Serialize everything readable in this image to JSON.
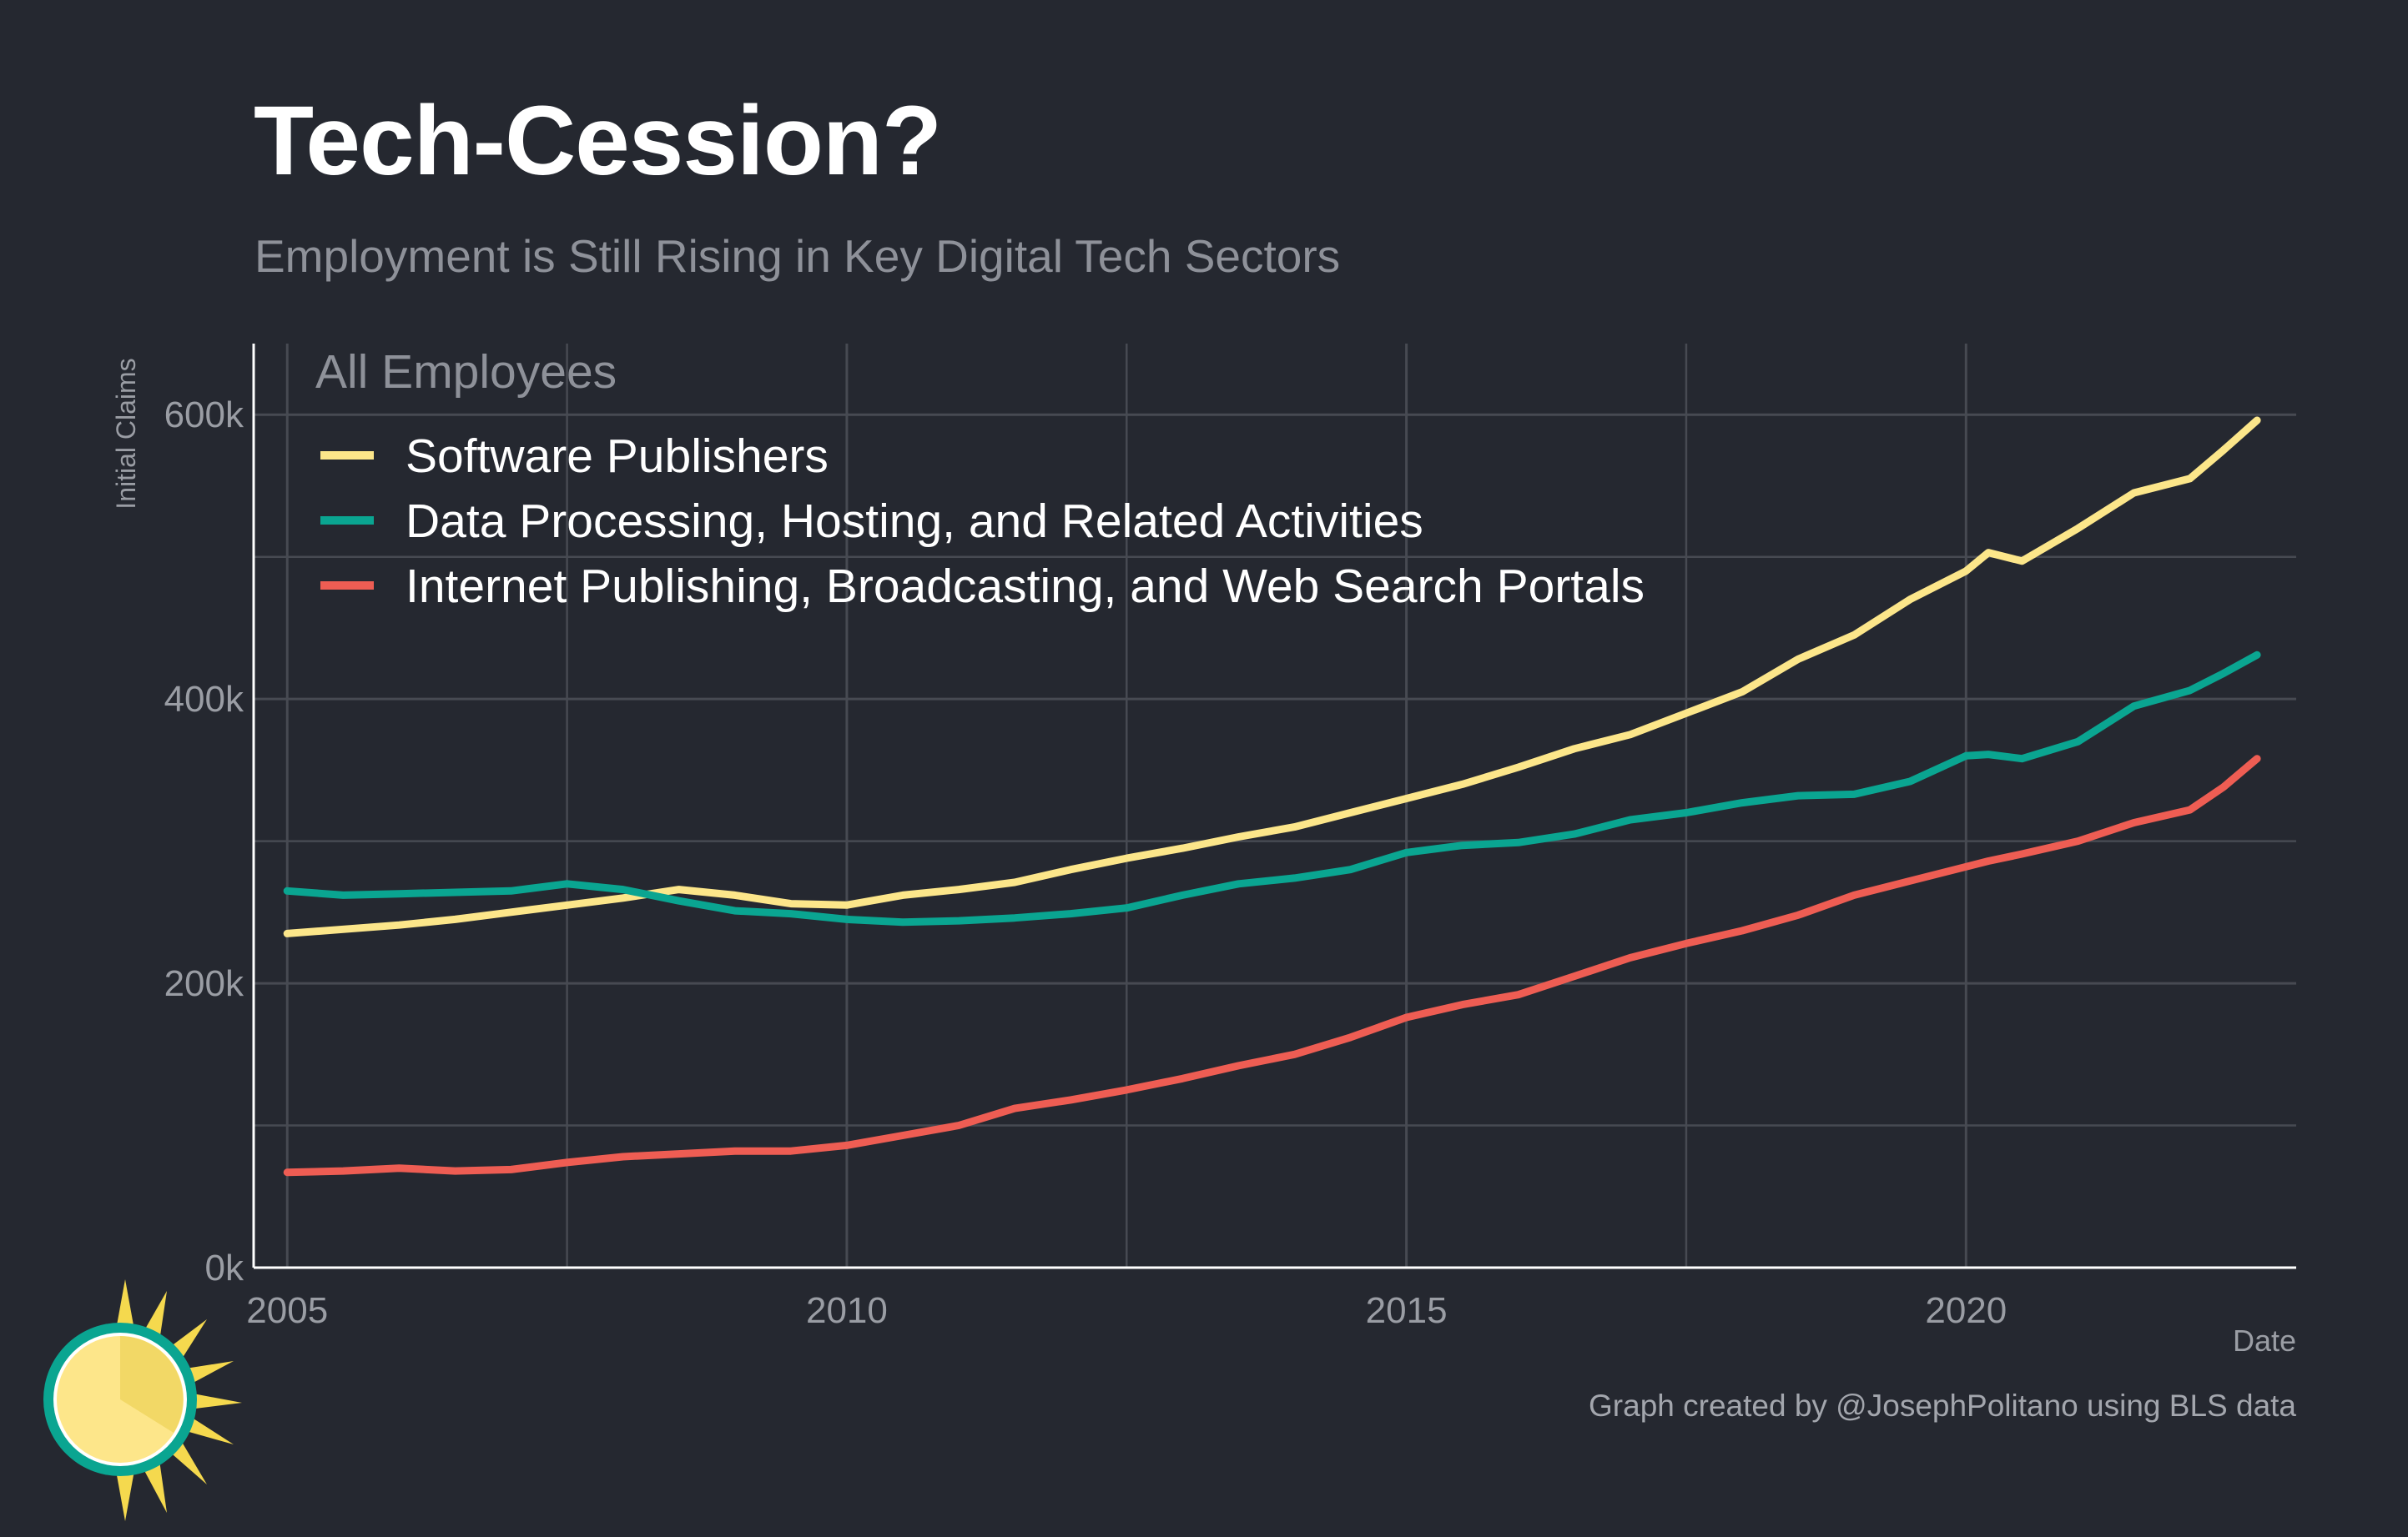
{
  "title": "Tech-Cession?",
  "subtitle": "Employment is Still Rising in Key Digital Tech Sectors",
  "caption": "Graph created by @JosephPolitano using BLS data",
  "colors": {
    "background": "#252830",
    "grid": "#474a52",
    "axis_line": "#ffffff",
    "tick_text": "#9a9da4",
    "legend_title": "#8e9199",
    "legend_text": "#ffffff"
  },
  "chart_data": {
    "type": "line",
    "title": "Tech-Cession?",
    "subtitle": "Employment is Still Rising in Key Digital Tech Sectors",
    "xlabel": "Date",
    "ylabel": "Initial Claims",
    "xlim": [
      2004.7,
      2022.95
    ],
    "ylim": [
      0,
      650000
    ],
    "x_ticks": [
      2005,
      2010,
      2015,
      2020
    ],
    "x_tick_labels": [
      "2005",
      "2010",
      "2015",
      "2020"
    ],
    "y_ticks": [
      0,
      200000,
      400000,
      600000
    ],
    "y_tick_labels": [
      "0k",
      "200k",
      "400k",
      "600k"
    ],
    "grid": true,
    "legend_title": "All Employees",
    "legend_position": "top-left",
    "series": [
      {
        "name": "Software Publishers",
        "color": "#fce68a",
        "x": [
          2005,
          2005.5,
          2006,
          2006.5,
          2007,
          2007.5,
          2008,
          2008.5,
          2009,
          2009.5,
          2010,
          2010.5,
          2011,
          2011.5,
          2012,
          2012.5,
          2013,
          2013.5,
          2014,
          2014.5,
          2015,
          2015.5,
          2016,
          2016.5,
          2017,
          2017.5,
          2018,
          2018.5,
          2019,
          2019.5,
          2020,
          2020.2,
          2020.5,
          2021,
          2021.5,
          2022,
          2022.3,
          2022.6
        ],
        "y": [
          235000,
          238000,
          241000,
          245000,
          250000,
          255000,
          260000,
          266000,
          262000,
          256000,
          255000,
          262000,
          266000,
          271000,
          280000,
          288000,
          295000,
          303000,
          310000,
          320000,
          330000,
          340000,
          352000,
          365000,
          375000,
          390000,
          405000,
          428000,
          445000,
          470000,
          490000,
          503000,
          497000,
          520000,
          545000,
          555000,
          575000,
          596000
        ]
      },
      {
        "name": "Data Processing, Hosting, and Related Activities",
        "color": "#0aa591",
        "x": [
          2005,
          2005.5,
          2006,
          2006.5,
          2007,
          2007.5,
          2008,
          2008.5,
          2009,
          2009.5,
          2010,
          2010.5,
          2011,
          2011.5,
          2012,
          2012.5,
          2013,
          2013.5,
          2014,
          2014.5,
          2015,
          2015.5,
          2016,
          2016.5,
          2017,
          2017.5,
          2018,
          2018.5,
          2019,
          2019.5,
          2020,
          2020.2,
          2020.5,
          2021,
          2021.5,
          2022,
          2022.3,
          2022.6
        ],
        "y": [
          265000,
          262000,
          263000,
          264000,
          265000,
          270000,
          266000,
          258000,
          251000,
          249000,
          245000,
          243000,
          244000,
          246000,
          249000,
          253000,
          262000,
          270000,
          274000,
          280000,
          292000,
          297000,
          299000,
          305000,
          315000,
          320000,
          327000,
          332000,
          333000,
          342000,
          360000,
          361000,
          358000,
          370000,
          395000,
          406000,
          418000,
          431000
        ]
      },
      {
        "name": "Internet Publishing, Broadcasting, and Web Search Portals",
        "color": "#ee5d53",
        "x": [
          2005,
          2005.5,
          2006,
          2006.5,
          2007,
          2007.5,
          2008,
          2008.5,
          2009,
          2009.5,
          2010,
          2010.5,
          2011,
          2011.5,
          2012,
          2012.5,
          2013,
          2013.5,
          2014,
          2014.5,
          2015,
          2015.5,
          2016,
          2016.5,
          2017,
          2017.5,
          2018,
          2018.5,
          2019,
          2019.5,
          2020,
          2020.2,
          2020.5,
          2021,
          2021.5,
          2022,
          2022.3,
          2022.6
        ],
        "y": [
          67000,
          68000,
          70000,
          68000,
          69000,
          74000,
          78000,
          80000,
          82000,
          82000,
          86000,
          93000,
          100000,
          112000,
          118000,
          125000,
          133000,
          142000,
          150000,
          162000,
          176000,
          185000,
          192000,
          205000,
          218000,
          228000,
          237000,
          248000,
          262000,
          272000,
          282000,
          286000,
          291000,
          300000,
          313000,
          322000,
          338000,
          358000
        ]
      }
    ]
  }
}
